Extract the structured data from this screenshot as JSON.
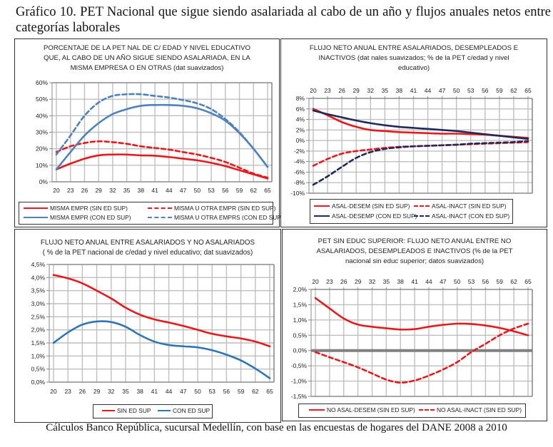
{
  "figure": {
    "title": "Gráfico 10. PET Nacional que sigue siendo asalariada al cabo de un año y flujos anuales netos entre categorías laborales",
    "caption": "Cálculos Banco República, sucursal Medellín, con base en las encuestas de hogares del DANE 2008 a 2010"
  },
  "colors": {
    "red": "#e8191c",
    "blue": "#4f81bd",
    "navy": "#1f2a5a",
    "blue2": "#2e75b6",
    "grid": "#bfbfbf",
    "zero_line": "#808080"
  },
  "chart_data": [
    {
      "id": "c1",
      "type": "line",
      "title_lines": [
        "PORCENTAJE DE LA PET NAL DE C/ EDAD Y NIVEL EDUCATIVO",
        "QUE, AL CABO DE UN AÑO SIGUE SIENDO ASALARIADA, EN LA",
        "MISMA EMPRESA O EN OTRAS (dat suavizados)"
      ],
      "xlabel": "",
      "ylabel": "",
      "x_ticks": [
        "20",
        "23",
        "26",
        "29",
        "32",
        "35",
        "38",
        "41",
        "44",
        "47",
        "50",
        "53",
        "56",
        "59",
        "62",
        "65"
      ],
      "x_axis_position": "bottom",
      "ylim": [
        0,
        60
      ],
      "y_ticks": [
        0,
        10,
        20,
        30,
        40,
        50,
        60
      ],
      "y_tick_labels": [
        "0%",
        "10%",
        "20%",
        "30%",
        "40%",
        "50%",
        "60%"
      ],
      "grid": true,
      "legend_position": "bottom",
      "x": [
        20,
        23,
        26,
        29,
        32,
        35,
        38,
        41,
        44,
        47,
        50,
        53,
        56,
        59,
        62,
        65
      ],
      "series": [
        {
          "name": "MISMA EMPR (SIN ED SUP)",
          "color": "red",
          "dash": false,
          "values": [
            7.5,
            11,
            14,
            16,
            16.5,
            16.5,
            16,
            15.8,
            15,
            14,
            13,
            11.5,
            9.5,
            7,
            4.5,
            2
          ]
        },
        {
          "name": "MISMA U OTRA EMPR (SIN ED SUP)",
          "color": "red",
          "dash": true,
          "values": [
            18,
            21.5,
            23.5,
            24.5,
            24,
            23,
            21.5,
            20.5,
            19.5,
            18,
            16.5,
            14.5,
            12,
            8.5,
            5,
            2.5
          ]
        },
        {
          "name": "MISMA EMPR (CON ED SUP)",
          "color": "blue",
          "dash": false,
          "values": [
            7.5,
            18,
            28,
            35.5,
            41,
            44,
            46,
            46.5,
            46.5,
            46,
            44.5,
            41.5,
            37,
            29.5,
            20,
            9
          ]
        },
        {
          "name": "MISMA U OTRA EMPRS (CON ED SUP)",
          "color": "blue",
          "dash": true,
          "values": [
            16.5,
            28,
            40,
            48,
            52,
            53,
            53,
            52,
            51,
            49.5,
            47.5,
            44,
            38,
            30,
            20,
            9
          ]
        }
      ]
    },
    {
      "id": "c2",
      "type": "line",
      "title_lines": [
        "FLUJO NETO ANUAL ENTRE ASALARIADOS, DESEMPLEADOS E",
        "INACTIVOS (dat nales suavizados; % de la PET  c/edad y nivel",
        "educativo)"
      ],
      "xlabel": "",
      "ylabel": "",
      "x_ticks": [
        "20",
        "23",
        "26",
        "29",
        "32",
        "35",
        "38",
        "41",
        "44",
        "47",
        "50",
        "53",
        "56",
        "59",
        "62",
        "65"
      ],
      "x_axis_position": "top",
      "ylim": [
        -10,
        8
      ],
      "y_ticks": [
        -10,
        -8,
        -6,
        -4,
        -2,
        0,
        2,
        4,
        6,
        8
      ],
      "y_tick_labels": [
        "-10%",
        "-8%",
        "-6%",
        "-4%",
        "-2%",
        "0%",
        "2%",
        "4%",
        "6%",
        "8%"
      ],
      "grid": true,
      "legend_position": "bottom",
      "x": [
        20,
        23,
        26,
        29,
        32,
        35,
        38,
        41,
        44,
        47,
        50,
        53,
        56,
        59,
        62,
        65
      ],
      "series": [
        {
          "name": "ASAL-DESEM (SIN ED SUP)",
          "color": "red",
          "dash": false,
          "values": [
            6,
            4.8,
            3.5,
            2.6,
            2,
            1.8,
            1.6,
            1.5,
            1.4,
            1.3,
            1.3,
            1.2,
            1.1,
            0.9,
            0.7,
            0.5
          ]
        },
        {
          "name": "ASAL-INACT (SIN ED SUP)",
          "color": "red",
          "dash": true,
          "values": [
            -4.8,
            -3.5,
            -2.5,
            -2,
            -1.7,
            -1.4,
            -1.2,
            -1.1,
            -1,
            -0.9,
            -0.8,
            -0.7,
            -0.6,
            -0.5,
            -0.4,
            -0.3
          ]
        },
        {
          "name": "ASAL-DESEMP (CON ED SUP)",
          "color": "navy",
          "dash": false,
          "values": [
            5.7,
            5,
            4.4,
            3.8,
            3.3,
            2.9,
            2.6,
            2.4,
            2.2,
            2,
            1.8,
            1.5,
            1.2,
            0.9,
            0.6,
            0.3
          ]
        },
        {
          "name": "ASAL-INACT (CON ED SUP)",
          "color": "navy",
          "dash": true,
          "values": [
            -8.4,
            -6.8,
            -5,
            -3.3,
            -2.2,
            -1.6,
            -1.3,
            -1.1,
            -1,
            -0.9,
            -0.8,
            -0.6,
            -0.5,
            -0.4,
            -0.3,
            -0.1
          ]
        }
      ]
    },
    {
      "id": "c3",
      "type": "line",
      "title_lines": [
        "FLUJO NETO ANUAL ENTRE ASALARIADOS Y NO ASALARIADOS",
        "( % de la PET nacional  de c/edad y nivel educativo; dat suavizados)"
      ],
      "xlabel": "",
      "ylabel": "",
      "x_ticks": [
        "20",
        "23",
        "26",
        "29",
        "32",
        "35",
        "38",
        "41",
        "44",
        "47",
        "50",
        "53",
        "56",
        "59",
        "62",
        "65"
      ],
      "x_axis_position": "bottom",
      "ylim": [
        0,
        4.5
      ],
      "y_ticks": [
        0,
        0.5,
        1,
        1.5,
        2,
        2.5,
        3,
        3.5,
        4,
        4.5
      ],
      "y_tick_labels": [
        "0,0%",
        "0,5%",
        "1,0%",
        "1,5%",
        "2,0%",
        "2,5%",
        "3,0%",
        "3,5%",
        "4,0%",
        "4,5%"
      ],
      "grid": true,
      "legend_position": "bottom",
      "x": [
        20,
        23,
        26,
        29,
        32,
        35,
        38,
        41,
        44,
        47,
        50,
        53,
        56,
        59,
        62,
        65
      ],
      "series": [
        {
          "name": "SIN ED SUP",
          "color": "red",
          "dash": false,
          "values": [
            4.1,
            3.97,
            3.78,
            3.5,
            3.2,
            2.85,
            2.58,
            2.4,
            2.28,
            2.15,
            2.0,
            1.85,
            1.75,
            1.67,
            1.55,
            1.37
          ]
        },
        {
          "name": "CON ED SUP",
          "color": "blue2",
          "dash": false,
          "values": [
            1.5,
            1.9,
            2.2,
            2.32,
            2.3,
            2.12,
            1.8,
            1.55,
            1.42,
            1.37,
            1.33,
            1.22,
            1.05,
            0.83,
            0.52,
            0.15
          ]
        }
      ]
    },
    {
      "id": "c4",
      "type": "line",
      "title_lines": [
        "PET SIN EDUC SUPERIOR:  FLUJO NETO ANUAL ENTRE NO",
        "ASALARIADOS, DESEMPLEADOS E INACTIVOS (% de la PET",
        "nacional sin educ superior; datos suavizados)"
      ],
      "xlabel": "",
      "ylabel": "",
      "x_ticks": [
        "20",
        "23",
        "26",
        "29",
        "32",
        "35",
        "38",
        "41",
        "44",
        "47",
        "50",
        "53",
        "56",
        "59",
        "62",
        "65"
      ],
      "x_axis_position": "top",
      "ylim": [
        -1.5,
        2.0
      ],
      "y_ticks": [
        -1.5,
        -1,
        -0.5,
        0,
        0.5,
        1,
        1.5,
        2
      ],
      "y_tick_labels": [
        "-1,5%",
        "-1,0%",
        "-0,5%",
        "0,0%",
        "0,5%",
        "1,0%",
        "1,5%",
        "2,0%"
      ],
      "grid": true,
      "legend_position": "bottom",
      "x": [
        20,
        23,
        26,
        29,
        32,
        35,
        38,
        41,
        44,
        47,
        50,
        53,
        56,
        59,
        62,
        65
      ],
      "series": [
        {
          "name": "NO ASAL-DESEM (SIN ED SUP)",
          "color": "red",
          "dash": false,
          "values": [
            1.72,
            1.38,
            1.05,
            0.85,
            0.78,
            0.73,
            0.69,
            0.7,
            0.78,
            0.84,
            0.88,
            0.87,
            0.82,
            0.74,
            0.63,
            0.5
          ]
        },
        {
          "name": "NO ASAL-INACT (SIN ED SUP)",
          "color": "red",
          "dash": true,
          "values": [
            -0.05,
            -0.22,
            -0.38,
            -0.55,
            -0.75,
            -0.95,
            -1.05,
            -0.98,
            -0.82,
            -0.62,
            -0.38,
            -0.05,
            0.22,
            0.5,
            0.72,
            0.88
          ]
        }
      ]
    }
  ]
}
